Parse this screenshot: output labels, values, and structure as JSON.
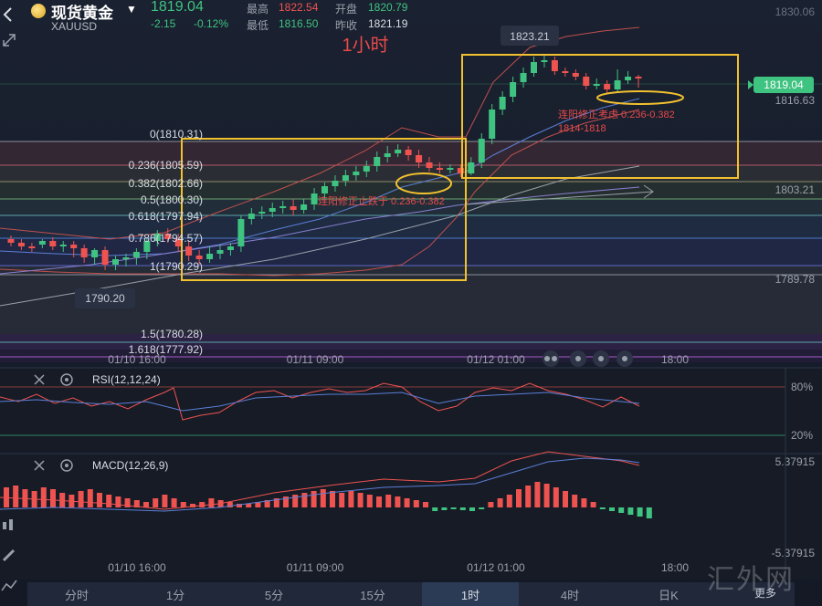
{
  "header": {
    "title": "现货黄金",
    "symbol": "XAUUSD",
    "last_price": "1819.04",
    "change": "-2.15",
    "change_pct": "-0.12%",
    "high_label": "最高",
    "high_value": "1822.54",
    "open_label": "开盘",
    "open_value": "1820.79",
    "low_label": "最低",
    "low_value": "1816.50",
    "prev_label": "昨收",
    "prev_value": "1821.19"
  },
  "chart": {
    "annotation_title": "1小时",
    "price_labels": {
      "top": "1830.06",
      "current": "1819.04",
      "p1816": "1816.63",
      "p1803": "1803.21",
      "p1789": "1789.78",
      "peak": "1823.21",
      "low": "1790.20"
    },
    "fib_levels": [
      {
        "label": "0(1810.31)"
      },
      {
        "label": "0.236(1805.59)"
      },
      {
        "label": "0.382(1802.66)"
      },
      {
        "label": "0.5(1800.30)"
      },
      {
        "label": "0.618(1797.94)"
      },
      {
        "label": "0.786(1794.57)"
      },
      {
        "label": "1(1790.29)"
      },
      {
        "label": "1.5(1780.28)"
      },
      {
        "label": "1.618(1777.92)"
      }
    ],
    "notes": {
      "note1": "连阳修正止跌于 0.236-0.382",
      "note2_line1": "连阳修正考虑 0.236-0.382",
      "note2_line2": "1814-1818"
    },
    "time_labels": [
      "01/10 16:00",
      "01/11 09:00",
      "01/12 01:00",
      "18:00"
    ],
    "colors": {
      "up": "#3fc380",
      "down": "#ef5350",
      "box": "#f2c12e",
      "annot": "#e84a4a"
    }
  },
  "rsi": {
    "label": "RSI(12,12,24)",
    "level_high": "80%",
    "level_low": "20%"
  },
  "macd": {
    "label": "MACD(12,26,9)",
    "top_value": "5.37915",
    "bottom_value": "-5.37915"
  },
  "timeframes": [
    "分时",
    "1分",
    "5分",
    "15分",
    "1时",
    "4时",
    "日K"
  ],
  "active_timeframe": "1时",
  "more_label": "更多",
  "watermark": "汇外网"
}
